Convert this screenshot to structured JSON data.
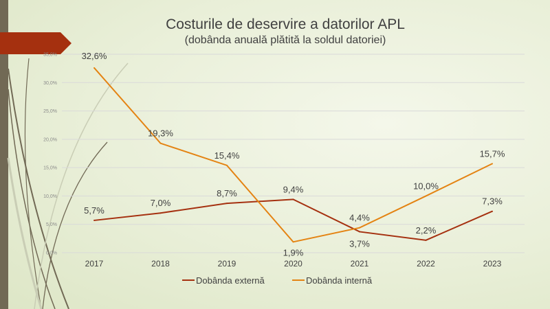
{
  "chart_data": {
    "type": "line",
    "title": "Costurile de deservire a datorilor APL",
    "subtitle": "(dobânda anuală plătită la soldul datoriei)",
    "xlabel": "",
    "ylabel": "",
    "categories": [
      "2017",
      "2018",
      "2019",
      "2020",
      "2021",
      "2022",
      "2023"
    ],
    "ylim": [
      0,
      35
    ],
    "yticks": [
      "0,0%",
      "5,0%",
      "10,0%",
      "15,0%",
      "20,0%",
      "25,0%",
      "30,0%",
      "35,0%"
    ],
    "grid": true,
    "legend_position": "bottom",
    "series": [
      {
        "name": "Dobânda externă",
        "color": "#a5300f",
        "values": [
          5.7,
          7.0,
          8.7,
          9.4,
          3.7,
          2.2,
          7.3
        ],
        "labels": [
          "5,7%",
          "7,0%",
          "8,7%",
          "9,4%",
          "3,7%",
          "2,2%",
          "7,3%"
        ]
      },
      {
        "name": "Dobânda internă",
        "color": "#e48312",
        "values": [
          32.6,
          19.3,
          15.4,
          1.9,
          4.4,
          10.0,
          15.7
        ],
        "labels": [
          "32,6%",
          "19,3%",
          "15,4%",
          "1,9%",
          "4,4%",
          "10,0%",
          "15,7%"
        ]
      }
    ]
  }
}
